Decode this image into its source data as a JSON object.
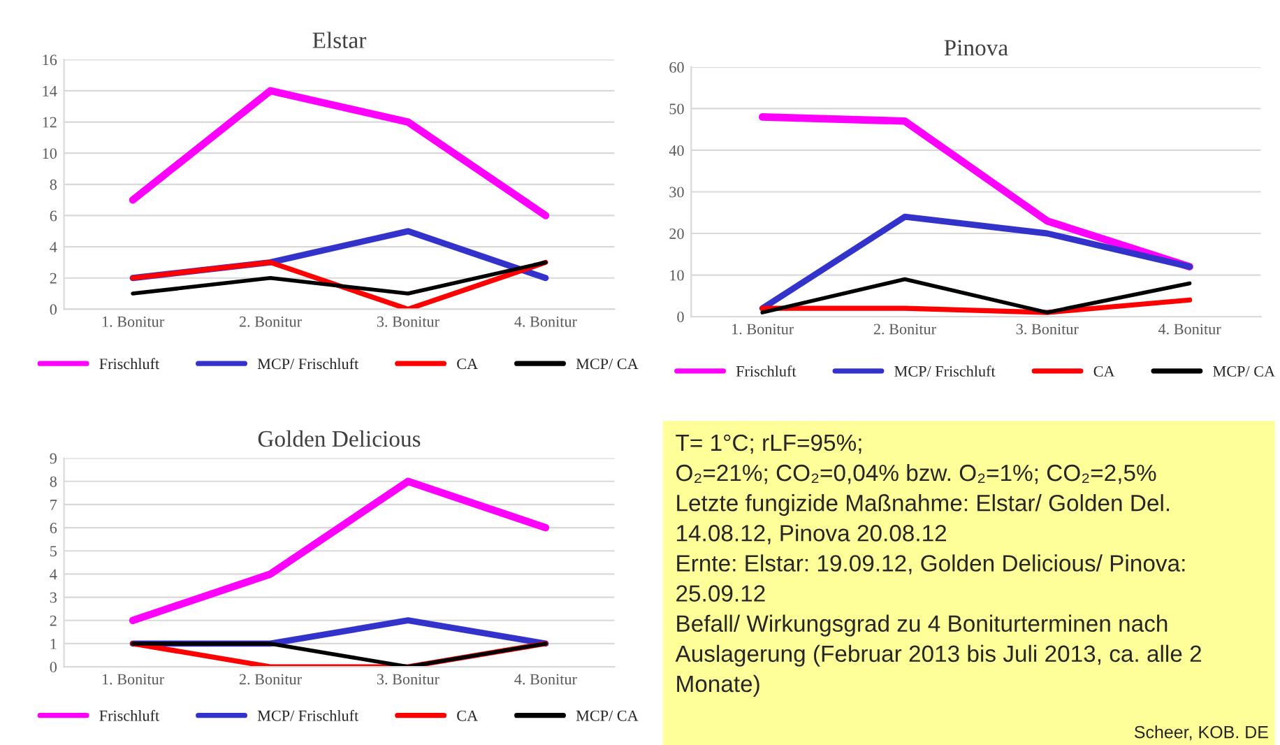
{
  "chart_data": [
    {
      "type": "line",
      "title": "Elstar",
      "categories": [
        "1. Bonitur",
        "2. Bonitur",
        "3. Bonitur",
        "4. Bonitur"
      ],
      "ylim": [
        0,
        16
      ],
      "yticks": [
        0,
        2,
        4,
        6,
        8,
        10,
        12,
        14,
        16
      ],
      "grid": "y",
      "legend": "bottom",
      "series": [
        {
          "name": "Frischluft",
          "color": "#ff00ff",
          "values": [
            7,
            14,
            12,
            6
          ]
        },
        {
          "name": "MCP/ Frischluft",
          "color": "#3333cc",
          "values": [
            2,
            3,
            5,
            2
          ]
        },
        {
          "name": "CA",
          "color": "#ff0000",
          "values": [
            2,
            3,
            0,
            3
          ]
        },
        {
          "name": "MCP/ CA",
          "color": "#000000",
          "values": [
            1,
            2,
            1,
            3
          ]
        }
      ]
    },
    {
      "type": "line",
      "title": "Pinova",
      "categories": [
        "1. Bonitur",
        "2. Bonitur",
        "3. Bonitur",
        "4. Bonitur"
      ],
      "ylim": [
        0,
        60
      ],
      "yticks": [
        0,
        10,
        20,
        30,
        40,
        50,
        60
      ],
      "grid": "y",
      "legend": "bottom",
      "series": [
        {
          "name": "Frischluft",
          "color": "#ff00ff",
          "values": [
            48,
            47,
            23,
            12
          ]
        },
        {
          "name": "MCP/ Frischluft",
          "color": "#3333cc",
          "values": [
            2,
            24,
            20,
            12
          ]
        },
        {
          "name": "CA",
          "color": "#ff0000",
          "values": [
            2,
            2,
            1,
            4
          ]
        },
        {
          "name": "MCP/ CA",
          "color": "#000000",
          "values": [
            1,
            9,
            1,
            8
          ]
        }
      ]
    },
    {
      "type": "line",
      "title": "Golden Delicious",
      "categories": [
        "1. Bonitur",
        "2. Bonitur",
        "3. Bonitur",
        "4. Bonitur"
      ],
      "ylim": [
        0,
        9
      ],
      "yticks": [
        0,
        1,
        2,
        3,
        4,
        5,
        6,
        7,
        8,
        9
      ],
      "grid": "y",
      "legend": "bottom",
      "series": [
        {
          "name": "Frischluft",
          "color": "#ff00ff",
          "values": [
            2,
            4,
            8,
            6
          ]
        },
        {
          "name": "MCP/ Frischluft",
          "color": "#3333cc",
          "values": [
            1,
            1,
            2,
            1
          ]
        },
        {
          "name": "CA",
          "color": "#ff0000",
          "values": [
            1,
            0,
            0,
            1
          ]
        },
        {
          "name": "MCP/ CA",
          "color": "#000000",
          "values": [
            1,
            1,
            0,
            1
          ]
        }
      ]
    },
    {
      "type": "other",
      "annotations": [
        "T= 1°C; rLF=95%;",
        "O₂=21%; CO₂=0,04% bzw. O₂=1%; CO₂=2,5%",
        "Letzte fungizide Maßnahme: Elstar/ Golden Del. 14.08.12, Pinova 20.08.12",
        "Ernte: Elstar: 19.09.12, Golden Delicious/ Pinova: 25.09.12",
        "Befall/ Wirkungsgrad zu 4 Boniturterminen nach Auslagerung (Februar 2013 bis Juli 2013, ca. alle 2 Monate)",
        "Scheer, KOB. DE"
      ]
    }
  ]
}
